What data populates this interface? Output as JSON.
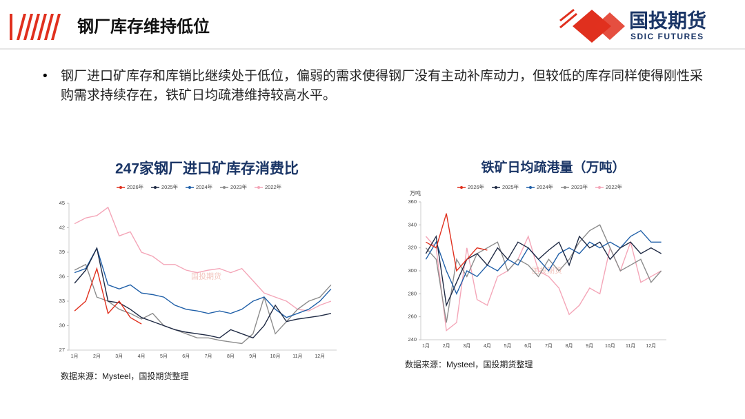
{
  "header": {
    "title": "钢厂库存维持低位",
    "logo_cn": "国投期货",
    "logo_en": "SDIC FUTURES"
  },
  "bullet": "钢厂进口矿库存和库销比继续处于低位，偏弱的需求使得钢厂没有主动补库动力，但较低的库存同样使得刚性采购需求持续存在，铁矿日均疏港维持较高水平。",
  "chart_data": [
    {
      "type": "line",
      "title": "247家钢厂进口矿库存消费比",
      "source": "数据来源：Mysteel，国投期货整理",
      "categories": [
        "1月",
        null,
        "2月",
        null,
        "3月",
        null,
        "4月",
        null,
        "5月",
        null,
        "6月",
        null,
        "7月",
        null,
        "8月",
        null,
        "9月",
        null,
        "10月",
        null,
        "11月",
        null,
        "12月",
        null
      ],
      "ylim": [
        27,
        45
      ],
      "yticks": [
        27,
        30,
        33,
        36,
        39,
        42,
        45
      ],
      "series": [
        {
          "name": "2026年",
          "color": "#e0301e",
          "values": [
            31.8,
            33,
            37,
            31.5,
            33,
            31,
            30.2,
            null,
            null,
            null,
            null,
            null,
            null,
            null,
            null,
            null,
            null,
            null,
            null,
            null,
            null,
            null,
            null,
            null
          ]
        },
        {
          "name": "2025年",
          "color": "#1f2a44",
          "values": [
            35.2,
            36.8,
            39.5,
            33,
            32.8,
            32,
            31,
            30.5,
            30,
            29.5,
            29.2,
            29,
            28.8,
            28.5,
            29.5,
            29,
            28.5,
            30,
            32.5,
            30.5,
            30.8,
            31,
            31.2,
            31.5
          ]
        },
        {
          "name": "2024年",
          "color": "#1f5fa8",
          "values": [
            36.5,
            37,
            39.5,
            35,
            34.5,
            35,
            34,
            33.8,
            33.5,
            32.5,
            32,
            31.8,
            31.5,
            31.8,
            31.5,
            32,
            33,
            33.5,
            32,
            31,
            31.5,
            32,
            33,
            34.5
          ]
        },
        {
          "name": "2023年",
          "color": "#8c8c8c",
          "values": [
            36.8,
            37.5,
            33.5,
            33,
            32,
            31.5,
            30.8,
            31.5,
            30,
            29.5,
            29,
            28.5,
            28.5,
            28.2,
            28,
            27.8,
            29,
            33.5,
            29,
            30.5,
            32,
            33,
            33.5,
            35
          ]
        },
        {
          "name": "2022年",
          "color": "#f4a6b8",
          "values": [
            42.5,
            43.2,
            43.5,
            44.5,
            41,
            41.5,
            39,
            38.5,
            37.5,
            37.5,
            36.8,
            36.5,
            36.8,
            37,
            36.5,
            37,
            35.5,
            34,
            33.5,
            33,
            32,
            31.8,
            32.5,
            33
          ]
        }
      ]
    },
    {
      "type": "line",
      "title": "铁矿日均疏港量（万吨）",
      "y_label": "万吨",
      "source": "数据来源：Mysteel，国投期货整理",
      "categories": [
        "1月",
        null,
        "2月",
        null,
        "3月",
        null,
        "4月",
        null,
        "5月",
        null,
        "6月",
        null,
        "7月",
        null,
        "8月",
        null,
        "9月",
        null,
        "10月",
        null,
        "11月",
        null,
        "12月",
        null
      ],
      "ylim": [
        240,
        360
      ],
      "yticks": [
        240,
        260,
        280,
        300,
        320,
        340,
        360
      ],
      "series": [
        {
          "name": "2026年",
          "color": "#e0301e",
          "values": [
            325,
            320,
            350,
            300,
            310,
            320,
            318,
            null,
            null,
            null,
            null,
            null,
            null,
            null,
            null,
            null,
            null,
            null,
            null,
            null,
            null,
            null,
            null,
            null
          ]
        },
        {
          "name": "2025年",
          "color": "#1f2a44",
          "values": [
            315,
            330,
            270,
            290,
            310,
            315,
            305,
            320,
            310,
            325,
            320,
            310,
            318,
            325,
            305,
            330,
            320,
            325,
            310,
            320,
            325,
            315,
            320,
            315
          ]
        },
        {
          "name": "2024年",
          "color": "#1f5fa8",
          "values": [
            310,
            325,
            300,
            280,
            300,
            295,
            305,
            300,
            310,
            305,
            320,
            310,
            300,
            315,
            320,
            315,
            325,
            320,
            325,
            320,
            330,
            335,
            325,
            325
          ]
        },
        {
          "name": "2023年",
          "color": "#8c8c8c",
          "values": [
            320,
            310,
            255,
            310,
            295,
            315,
            320,
            325,
            300,
            310,
            305,
            295,
            310,
            300,
            310,
            325,
            335,
            340,
            320,
            300,
            305,
            310,
            290,
            300
          ]
        },
        {
          "name": "2022年",
          "color": "#f4a6b8",
          "values": [
            330,
            320,
            248,
            255,
            320,
            275,
            270,
            295,
            300,
            310,
            330,
            300,
            295,
            285,
            262,
            270,
            285,
            280,
            320,
            300,
            325,
            290,
            295,
            300
          ]
        }
      ]
    }
  ]
}
